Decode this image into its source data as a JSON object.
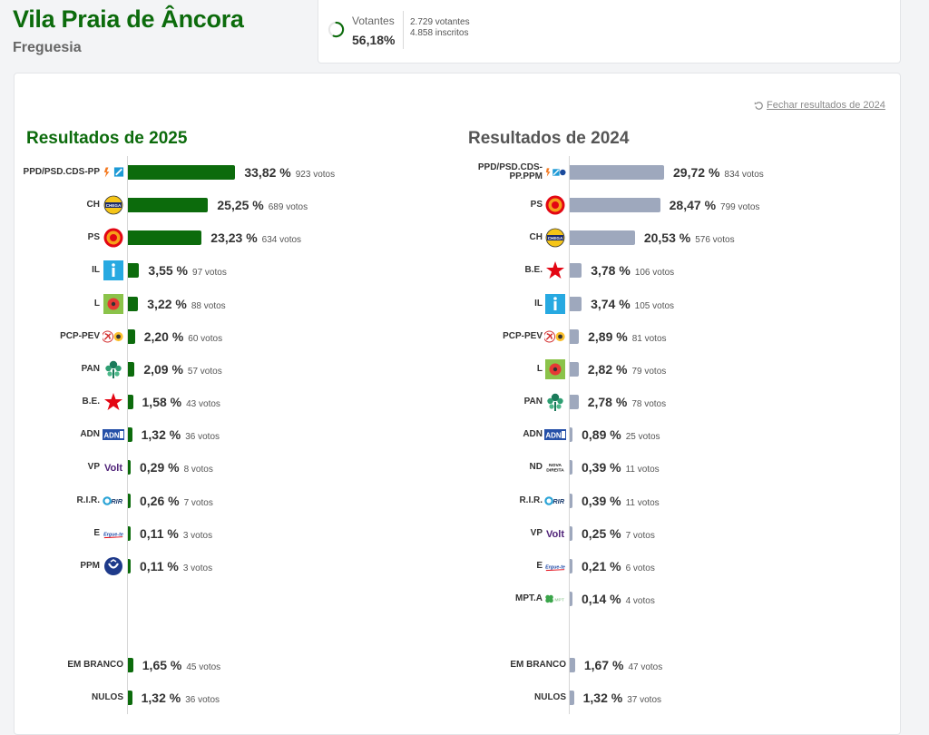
{
  "header": {
    "title": "Vila Praia de Âncora",
    "subtitle": "Freguesia"
  },
  "turnout": {
    "label": "Votantes",
    "percent": "56,18%",
    "percent_value": 56.18,
    "voters": "2.729 votantes",
    "registered": "4.858 inscritos"
  },
  "close_link": "Fechar resultados de 2024",
  "results_2025": {
    "title": "Resultados de 2025",
    "color": "#0c6b0c",
    "parties": [
      {
        "label": "PPD/PSD.CDS-PP",
        "logo": "ppd-cds-logo",
        "pct_text": "33,82 %",
        "pct": 33.82,
        "votes": "923 votos"
      },
      {
        "label": "CH",
        "logo": "chega-logo",
        "pct_text": "25,25 %",
        "pct": 25.25,
        "votes": "689 votos"
      },
      {
        "label": "PS",
        "logo": "ps-logo",
        "pct_text": "23,23 %",
        "pct": 23.23,
        "votes": "634 votos"
      },
      {
        "label": "IL",
        "logo": "il-logo",
        "pct_text": "3,55 %",
        "pct": 3.55,
        "votes": "97 votos"
      },
      {
        "label": "L",
        "logo": "livre-logo",
        "pct_text": "3,22 %",
        "pct": 3.22,
        "votes": "88 votos"
      },
      {
        "label": "PCP-PEV",
        "logo": "pcp-pev-logo",
        "pct_text": "2,20 %",
        "pct": 2.2,
        "votes": "60 votos"
      },
      {
        "label": "PAN",
        "logo": "pan-logo",
        "pct_text": "2,09 %",
        "pct": 2.09,
        "votes": "57 votos"
      },
      {
        "label": "B.E.",
        "logo": "be-logo",
        "pct_text": "1,58 %",
        "pct": 1.58,
        "votes": "43 votos"
      },
      {
        "label": "ADN",
        "logo": "adn-logo",
        "pct_text": "1,32 %",
        "pct": 1.32,
        "votes": "36 votos"
      },
      {
        "label": "VP",
        "logo": "volt-logo",
        "pct_text": "0,29 %",
        "pct": 0.29,
        "votes": "8 votos"
      },
      {
        "label": "R.I.R.",
        "logo": "rir-logo",
        "pct_text": "0,26 %",
        "pct": 0.26,
        "votes": "7 votos"
      },
      {
        "label": "E",
        "logo": "ergue-te-logo",
        "pct_text": "0,11 %",
        "pct": 0.11,
        "votes": "3 votos"
      },
      {
        "label": "PPM",
        "logo": "ppm-logo",
        "pct_text": "0,11 %",
        "pct": 0.11,
        "votes": "3 votos"
      }
    ],
    "blank": {
      "label": "EM BRANCO",
      "pct_text": "1,65 %",
      "pct": 1.65,
      "votes": "45 votos"
    },
    "null": {
      "label": "NULOS",
      "pct_text": "1,32 %",
      "pct": 1.32,
      "votes": "36 votos"
    }
  },
  "results_2024": {
    "title": "Resultados de 2024",
    "color": "#9ea8bd",
    "parties": [
      {
        "label": "PPD/PSD.CDS-PP.PPM",
        "logo": "ad-logo",
        "pct_text": "29,72 %",
        "pct": 29.72,
        "votes": "834 votos"
      },
      {
        "label": "PS",
        "logo": "ps-logo",
        "pct_text": "28,47 %",
        "pct": 28.47,
        "votes": "799 votos"
      },
      {
        "label": "CH",
        "logo": "chega-logo",
        "pct_text": "20,53 %",
        "pct": 20.53,
        "votes": "576 votos"
      },
      {
        "label": "B.E.",
        "logo": "be-logo",
        "pct_text": "3,78 %",
        "pct": 3.78,
        "votes": "106 votos"
      },
      {
        "label": "IL",
        "logo": "il-logo",
        "pct_text": "3,74 %",
        "pct": 3.74,
        "votes": "105 votos"
      },
      {
        "label": "PCP-PEV",
        "logo": "pcp-pev-logo",
        "pct_text": "2,89 %",
        "pct": 2.89,
        "votes": "81 votos"
      },
      {
        "label": "L",
        "logo": "livre-logo",
        "pct_text": "2,82 %",
        "pct": 2.82,
        "votes": "79 votos"
      },
      {
        "label": "PAN",
        "logo": "pan-logo",
        "pct_text": "2,78 %",
        "pct": 2.78,
        "votes": "78 votos"
      },
      {
        "label": "ADN",
        "logo": "adn-logo",
        "pct_text": "0,89 %",
        "pct": 0.89,
        "votes": "25 votos"
      },
      {
        "label": "ND",
        "logo": "nova-direita-logo",
        "pct_text": "0,39 %",
        "pct": 0.39,
        "votes": "11 votos"
      },
      {
        "label": "R.I.R.",
        "logo": "rir-logo",
        "pct_text": "0,39 %",
        "pct": 0.39,
        "votes": "11 votos"
      },
      {
        "label": "VP",
        "logo": "volt-logo",
        "pct_text": "0,25 %",
        "pct": 0.25,
        "votes": "7 votos"
      },
      {
        "label": "E",
        "logo": "ergue-te-logo",
        "pct_text": "0,21 %",
        "pct": 0.21,
        "votes": "6 votos"
      },
      {
        "label": "MPT.A",
        "logo": "mpt-logo",
        "pct_text": "0,14 %",
        "pct": 0.14,
        "votes": "4 votos"
      }
    ],
    "blank": {
      "label": "EM BRANCO",
      "pct_text": "1,67 %",
      "pct": 1.67,
      "votes": "47 votos"
    },
    "null": {
      "label": "NULOS",
      "pct_text": "1,32 %",
      "pct": 1.32,
      "votes": "37 votos"
    }
  },
  "logo_texts": {
    "chega": "CHEGA",
    "volt": "Volt",
    "rir": "RIR",
    "ergue": "Ergue-te",
    "adn": "ADN",
    "nd1": "NOVA",
    "nd2": "DIREITA",
    "mpt": "MPT"
  }
}
